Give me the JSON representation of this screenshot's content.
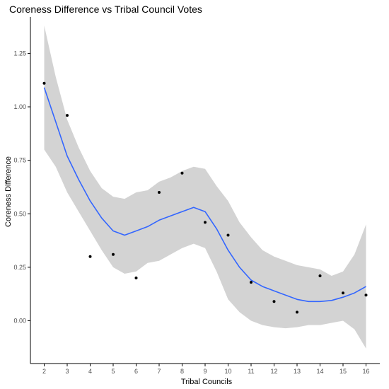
{
  "chart_data": {
    "type": "scatter",
    "title": "Coreness Difference vs Tribal Council Votes",
    "xlabel": "Tribal Councils",
    "ylabel": "Coreness Difference",
    "xlim": [
      1.4,
      16.6
    ],
    "ylim": [
      -0.2,
      1.42
    ],
    "x_ticks": [
      2,
      3,
      4,
      5,
      6,
      7,
      8,
      9,
      10,
      11,
      12,
      13,
      14,
      15,
      16
    ],
    "y_ticks": [
      0.0,
      0.25,
      0.5,
      0.75,
      1.0,
      1.25
    ],
    "y_tick_labels": [
      "0.00",
      "0.25",
      "0.50",
      "0.75",
      "1.00",
      "1.25"
    ],
    "grid": false,
    "legend": "none",
    "points": {
      "x": [
        2,
        3,
        4,
        5,
        6,
        7,
        8,
        9,
        10,
        11,
        12,
        13,
        14,
        15,
        16
      ],
      "y": [
        1.11,
        0.96,
        0.3,
        0.31,
        0.2,
        0.6,
        0.69,
        0.46,
        0.4,
        0.18,
        0.09,
        0.04,
        0.21,
        0.13,
        0.12
      ]
    },
    "smooth": {
      "x": [
        2,
        2.5,
        3,
        3.5,
        4,
        4.5,
        5,
        5.5,
        6,
        6.5,
        7,
        7.5,
        8,
        8.5,
        9,
        9.5,
        10,
        10.5,
        11,
        11.5,
        12,
        12.5,
        13,
        13.5,
        14,
        14.5,
        15,
        15.5,
        16
      ],
      "y": [
        1.09,
        0.93,
        0.77,
        0.66,
        0.56,
        0.48,
        0.42,
        0.4,
        0.42,
        0.44,
        0.47,
        0.49,
        0.51,
        0.53,
        0.51,
        0.43,
        0.33,
        0.25,
        0.19,
        0.16,
        0.14,
        0.12,
        0.1,
        0.09,
        0.09,
        0.095,
        0.11,
        0.13,
        0.16
      ],
      "lower": [
        0.8,
        0.72,
        0.6,
        0.51,
        0.42,
        0.33,
        0.25,
        0.22,
        0.23,
        0.27,
        0.28,
        0.31,
        0.34,
        0.36,
        0.34,
        0.23,
        0.1,
        0.04,
        0.0,
        -0.02,
        -0.03,
        -0.035,
        -0.03,
        -0.02,
        -0.02,
        -0.01,
        0.0,
        -0.04,
        -0.13
      ],
      "upper": [
        1.38,
        1.14,
        0.94,
        0.81,
        0.7,
        0.62,
        0.58,
        0.57,
        0.6,
        0.61,
        0.65,
        0.67,
        0.7,
        0.72,
        0.71,
        0.63,
        0.56,
        0.46,
        0.39,
        0.33,
        0.3,
        0.28,
        0.26,
        0.25,
        0.24,
        0.21,
        0.23,
        0.31,
        0.45
      ]
    },
    "colors": {
      "point": "#000000",
      "line": "#3366ff",
      "ribbon": "#d3d3d3",
      "axis": "#000000",
      "tick_label": "#4d4d4d"
    }
  }
}
